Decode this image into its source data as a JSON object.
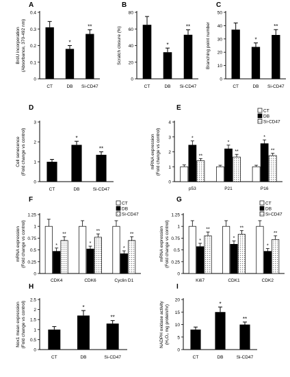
{
  "figure": {
    "colors": {
      "ct": "#ffffff",
      "db": "#000000",
      "si": "#dcdcdc",
      "axis": "#000000"
    }
  },
  "chart_data": [
    {
      "panel": "A",
      "type": "bar",
      "categories": [
        "CT",
        "DB",
        "Si-CD47"
      ],
      "values": [
        0.31,
        0.18,
        0.27
      ],
      "errors": [
        0.035,
        0.02,
        0.025
      ],
      "significance": [
        "",
        "*",
        "**"
      ],
      "ylabel": "BrdU incorporation",
      "ylabel2": "(Absorbance, 370-492 nm)",
      "ylim": [
        0,
        0.4
      ],
      "yticks": [
        "0",
        "0.1",
        "0.2",
        "0.3",
        "0.4"
      ]
    },
    {
      "panel": "B",
      "type": "bar",
      "categories": [
        "CT",
        "DB",
        "Si-CD47"
      ],
      "values": [
        65,
        32,
        53
      ],
      "errors": [
        10,
        5,
        6
      ],
      "significance": [
        "",
        "*",
        "**"
      ],
      "ylabel": "Scratch closure (%)",
      "ylim": [
        0,
        80
      ],
      "yticks": [
        "0",
        "20",
        "40",
        "60",
        "80"
      ]
    },
    {
      "panel": "C",
      "type": "bar",
      "categories": [
        "CT",
        "DB",
        "Si-CD47"
      ],
      "values": [
        37,
        24,
        33
      ],
      "errors": [
        5,
        3,
        4
      ],
      "significance": [
        "",
        "*",
        "**"
      ],
      "ylabel": "Branching point number",
      "ylim": [
        0,
        50
      ],
      "yticks": [
        "0",
        "10",
        "20",
        "30",
        "40",
        "50"
      ]
    },
    {
      "panel": "D",
      "type": "bar",
      "categories": [
        "CT",
        "DB",
        "Si-CD47"
      ],
      "values": [
        1.0,
        1.85,
        1.35
      ],
      "errors": [
        0.12,
        0.18,
        0.15
      ],
      "significance": [
        "",
        "*",
        "**"
      ],
      "ylabel": "Cell senecence",
      "ylabel2": "(Fold change vs control)",
      "ylim": [
        0,
        3
      ],
      "yticks": [
        "0",
        "1",
        "2",
        "3"
      ]
    },
    {
      "panel": "E",
      "type": "bar",
      "categories": [
        "p53",
        "P21",
        "P16"
      ],
      "series": [
        {
          "name": "CT",
          "values": [
            1.0,
            1.0,
            1.0
          ],
          "errors": [
            0.12,
            0.1,
            0.1
          ],
          "significance": [
            "",
            "",
            ""
          ]
        },
        {
          "name": "DB",
          "values": [
            2.45,
            2.2,
            2.55
          ],
          "errors": [
            0.28,
            0.25,
            0.25
          ],
          "significance": [
            "*",
            "*",
            "*"
          ]
        },
        {
          "name": "Si-CD47",
          "values": [
            1.4,
            1.65,
            1.75
          ],
          "errors": [
            0.15,
            0.18,
            0.15
          ],
          "significance": [
            "**",
            "**",
            "**"
          ]
        }
      ],
      "ylabel": "mRNA expression",
      "ylabel2": "(Fold change vs control)",
      "ylim": [
        0,
        4
      ],
      "yticks": [
        "0",
        "1",
        "2",
        "3",
        "4"
      ],
      "legend": "top-right"
    },
    {
      "panel": "F",
      "type": "bar",
      "categories": [
        "CDK4",
        "CDK6",
        "Cyclin D1"
      ],
      "series": [
        {
          "name": "CT",
          "values": [
            1.0,
            1.0,
            1.0
          ],
          "errors": [
            0.15,
            0.12,
            0.12
          ],
          "significance": [
            "",
            "",
            ""
          ]
        },
        {
          "name": "DB",
          "values": [
            0.47,
            0.52,
            0.42
          ],
          "errors": [
            0.07,
            0.06,
            0.06
          ],
          "significance": [
            "*",
            "*",
            "*"
          ]
        },
        {
          "name": "Si-CD47",
          "values": [
            0.7,
            0.77,
            0.7
          ],
          "errors": [
            0.08,
            0.07,
            0.08
          ],
          "significance": [
            "**",
            "**",
            "**"
          ]
        }
      ],
      "ylabel": "mRNA expression",
      "ylabel2": "(Fold change vs control)",
      "ylim": [
        0,
        1.25
      ],
      "yticks": [
        "0",
        "0.25",
        "0.5",
        "0.75",
        "1",
        "1.25"
      ],
      "legend": "top-right"
    },
    {
      "panel": "G",
      "type": "bar",
      "categories": [
        "Ki67",
        "CDK1",
        "CDK2"
      ],
      "series": [
        {
          "name": "CT",
          "values": [
            1.0,
            1.0,
            1.0
          ],
          "errors": [
            0.12,
            0.12,
            0.12
          ],
          "significance": [
            "",
            "",
            ""
          ]
        },
        {
          "name": "DB",
          "values": [
            0.57,
            0.62,
            0.47
          ],
          "errors": [
            0.07,
            0.07,
            0.06
          ],
          "significance": [
            "*",
            "*",
            "*"
          ]
        },
        {
          "name": "Si-CD47",
          "values": [
            0.8,
            0.83,
            0.72
          ],
          "errors": [
            0.08,
            0.08,
            0.08
          ],
          "significance": [
            "**",
            "**",
            "**"
          ]
        }
      ],
      "ylabel": "mRNA expression",
      "ylabel2": "(Fold change vs control)",
      "ylim": [
        0,
        1.25
      ],
      "yticks": [
        "0",
        "0.25",
        "0.5",
        "0.75",
        "1",
        "1.25"
      ],
      "legend": "top-right"
    },
    {
      "panel": "H",
      "type": "bar",
      "categories": [
        "CT",
        "DB",
        "Si-CD47"
      ],
      "values": [
        1.0,
        1.7,
        1.3
      ],
      "errors": [
        0.15,
        0.25,
        0.15
      ],
      "significance": [
        "",
        "*",
        "**"
      ],
      "ylabel": "Nox1 mean expression",
      "ylabel2": "(Fold change vs control)",
      "ylim": [
        0,
        2.5
      ],
      "yticks": [
        "0",
        "0.5",
        "1",
        "1.5",
        "2",
        "2.5"
      ]
    },
    {
      "panel": "I",
      "type": "bar",
      "categories": [
        "CT",
        "DB",
        "Si-CD47"
      ],
      "values": [
        8,
        15,
        10
      ],
      "errors": [
        1,
        2,
        1
      ],
      "significance": [
        "",
        "*",
        "**"
      ],
      "ylabel": "NADPH oxidase activity",
      "ylabel2": "(H₂O₂ mg protein/hr)",
      "ylim": [
        0,
        20
      ],
      "yticks": [
        "0",
        "5",
        "10",
        "15",
        "20"
      ]
    }
  ]
}
